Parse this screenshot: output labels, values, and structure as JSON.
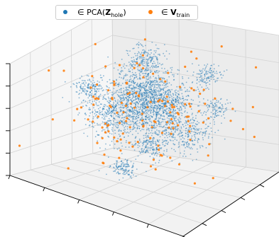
{
  "legend": {
    "items": [
      {
        "symbol": "∈",
        "prefix": "PCA(",
        "bold": "Z",
        "subscript": "hole",
        "suffix": ")",
        "color": "#1f77b4"
      },
      {
        "symbol": "∈",
        "prefix": "",
        "bold": "V",
        "subscript": "train",
        "suffix": "",
        "color": "#ff7f0e"
      }
    ],
    "placement": "top-center"
  },
  "chart_data": {
    "type": "scatter",
    "projection": "3d",
    "grid": true,
    "tick_labels": "none",
    "series": [
      {
        "label_index": 0,
        "color": "#1f77b4",
        "marker_size": "small",
        "alpha": 0.5,
        "distribution": "several dense clusters spread through the cube (approximate reading)",
        "clusters": [
          {
            "x": 0.0,
            "y": 0.0,
            "z": 0.1,
            "spread": 0.22,
            "n": 900
          },
          {
            "x": -0.1,
            "y": 0.1,
            "z": 0.35,
            "spread": 0.18,
            "n": 500
          },
          {
            "x": 0.3,
            "y": -0.1,
            "z": 0.3,
            "spread": 0.15,
            "n": 300
          },
          {
            "x": -0.55,
            "y": -0.2,
            "z": 0.35,
            "spread": 0.08,
            "n": 150
          },
          {
            "x": 0.75,
            "y": 0.1,
            "z": 0.25,
            "spread": 0.07,
            "n": 100
          },
          {
            "x": -0.4,
            "y": 0.0,
            "z": -0.1,
            "spread": 0.15,
            "n": 300
          },
          {
            "x": -0.15,
            "y": 0.25,
            "z": 0.7,
            "spread": 0.1,
            "n": 200
          },
          {
            "x": 0.55,
            "y": 0.3,
            "z": 0.6,
            "spread": 0.07,
            "n": 120
          },
          {
            "x": 0.05,
            "y": 0.0,
            "z": -0.45,
            "spread": 0.08,
            "n": 150
          },
          {
            "x": -0.1,
            "y": -0.3,
            "z": -0.7,
            "spread": 0.06,
            "n": 120
          },
          {
            "x": 0.4,
            "y": 0.15,
            "z": -0.2,
            "spread": 0.12,
            "n": 250
          }
        ]
      },
      {
        "label_index": 1,
        "color": "#ff7f0e",
        "marker_size": "medium",
        "alpha": 0.9,
        "distribution": "sparse points scattered through the same volume",
        "n": 150
      }
    ]
  }
}
